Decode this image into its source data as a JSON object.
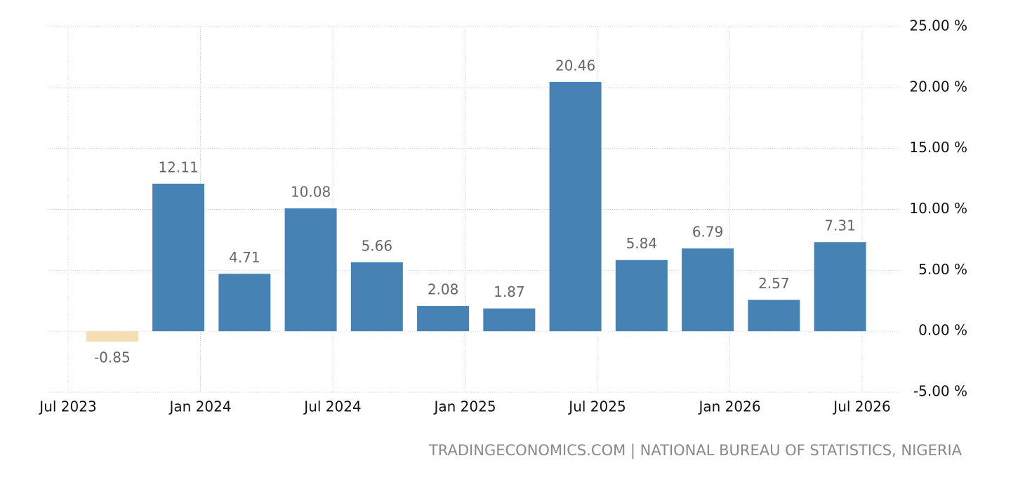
{
  "chart_data": {
    "type": "bar",
    "categories": [
      "Jul 2023",
      null,
      null,
      null,
      null,
      null,
      "Jan 2024",
      null,
      null,
      null,
      null,
      null,
      "Jul 2024",
      null,
      null,
      null,
      null,
      null,
      "Jan 2025",
      null,
      null,
      null,
      null,
      null,
      "Jul 2025",
      null,
      null,
      null,
      null,
      null,
      "Jan 2026",
      null,
      null,
      null,
      null,
      null,
      "Jul 2026"
    ],
    "values": [
      null,
      null,
      -0.85,
      null,
      null,
      12.11,
      null,
      null,
      4.71,
      null,
      null,
      10.08,
      null,
      null,
      5.66,
      null,
      null,
      2.08,
      null,
      null,
      1.87,
      null,
      null,
      20.46,
      null,
      null,
      5.84,
      null,
      null,
      6.79,
      null,
      null,
      2.57,
      null,
      null,
      7.31,
      null
    ],
    "color": "#4682b4",
    "negative_color": "#f5deb3",
    "ylim": [
      -5,
      25
    ],
    "yticks": [
      {
        "value": -5,
        "label": "-5.00 %"
      },
      {
        "value": 0,
        "label": "0.00 %"
      },
      {
        "value": 5,
        "label": "5.00 %"
      },
      {
        "value": 10,
        "label": "10.00 %"
      },
      {
        "value": 15,
        "label": "15.00 %"
      },
      {
        "value": 20,
        "label": "20.00 %"
      },
      {
        "value": 25,
        "label": "25.00 %"
      }
    ],
    "grid": true,
    "source": "TRADINGECONOMICS.COM | NATIONAL BUREAU OF STATISTICS, NIGERIA"
  }
}
